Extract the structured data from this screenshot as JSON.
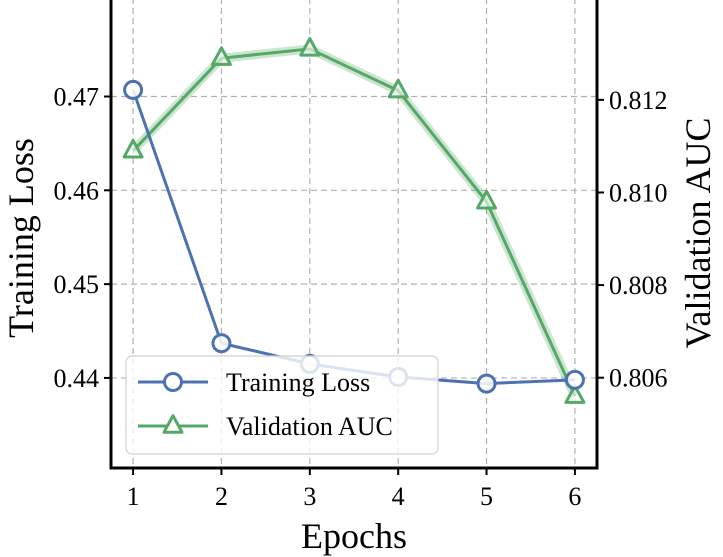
{
  "chart_data": {
    "type": "line",
    "title": "",
    "xlabel": "Epochs",
    "ylabel_left": "Training Loss",
    "ylabel_right": "Validation AUC",
    "x": [
      1,
      2,
      3,
      4,
      5,
      6
    ],
    "xticks": [
      "1",
      "2",
      "3",
      "4",
      "5",
      "6"
    ],
    "xlim": [
      0.75,
      6.25
    ],
    "ylim_left": [
      0.4304,
      0.4805
    ],
    "ylim_right": [
      0.80405,
      0.8142
    ],
    "yticks_left": [
      "0.44",
      "0.45",
      "0.46",
      "0.47"
    ],
    "yticks_left_values": [
      0.44,
      0.45,
      0.46,
      0.47
    ],
    "yticks_right": [
      "0.806",
      "0.808",
      "0.810",
      "0.812"
    ],
    "yticks_right_values": [
      0.806,
      0.808,
      0.81,
      0.812
    ],
    "grid": true,
    "legend_position": "lower-left",
    "series": [
      {
        "name": "Training Loss",
        "axis": "left",
        "color": "#4c72b0",
        "marker": "circle",
        "values": [
          0.4707,
          0.4437,
          0.4415,
          0.4401,
          0.4394,
          0.4398
        ]
      },
      {
        "name": "Validation AUC",
        "axis": "right",
        "color": "#55a868",
        "marker": "triangle",
        "values": [
          0.8109,
          0.8129,
          0.8131,
          0.8122,
          0.8098,
          0.8056
        ]
      }
    ]
  }
}
